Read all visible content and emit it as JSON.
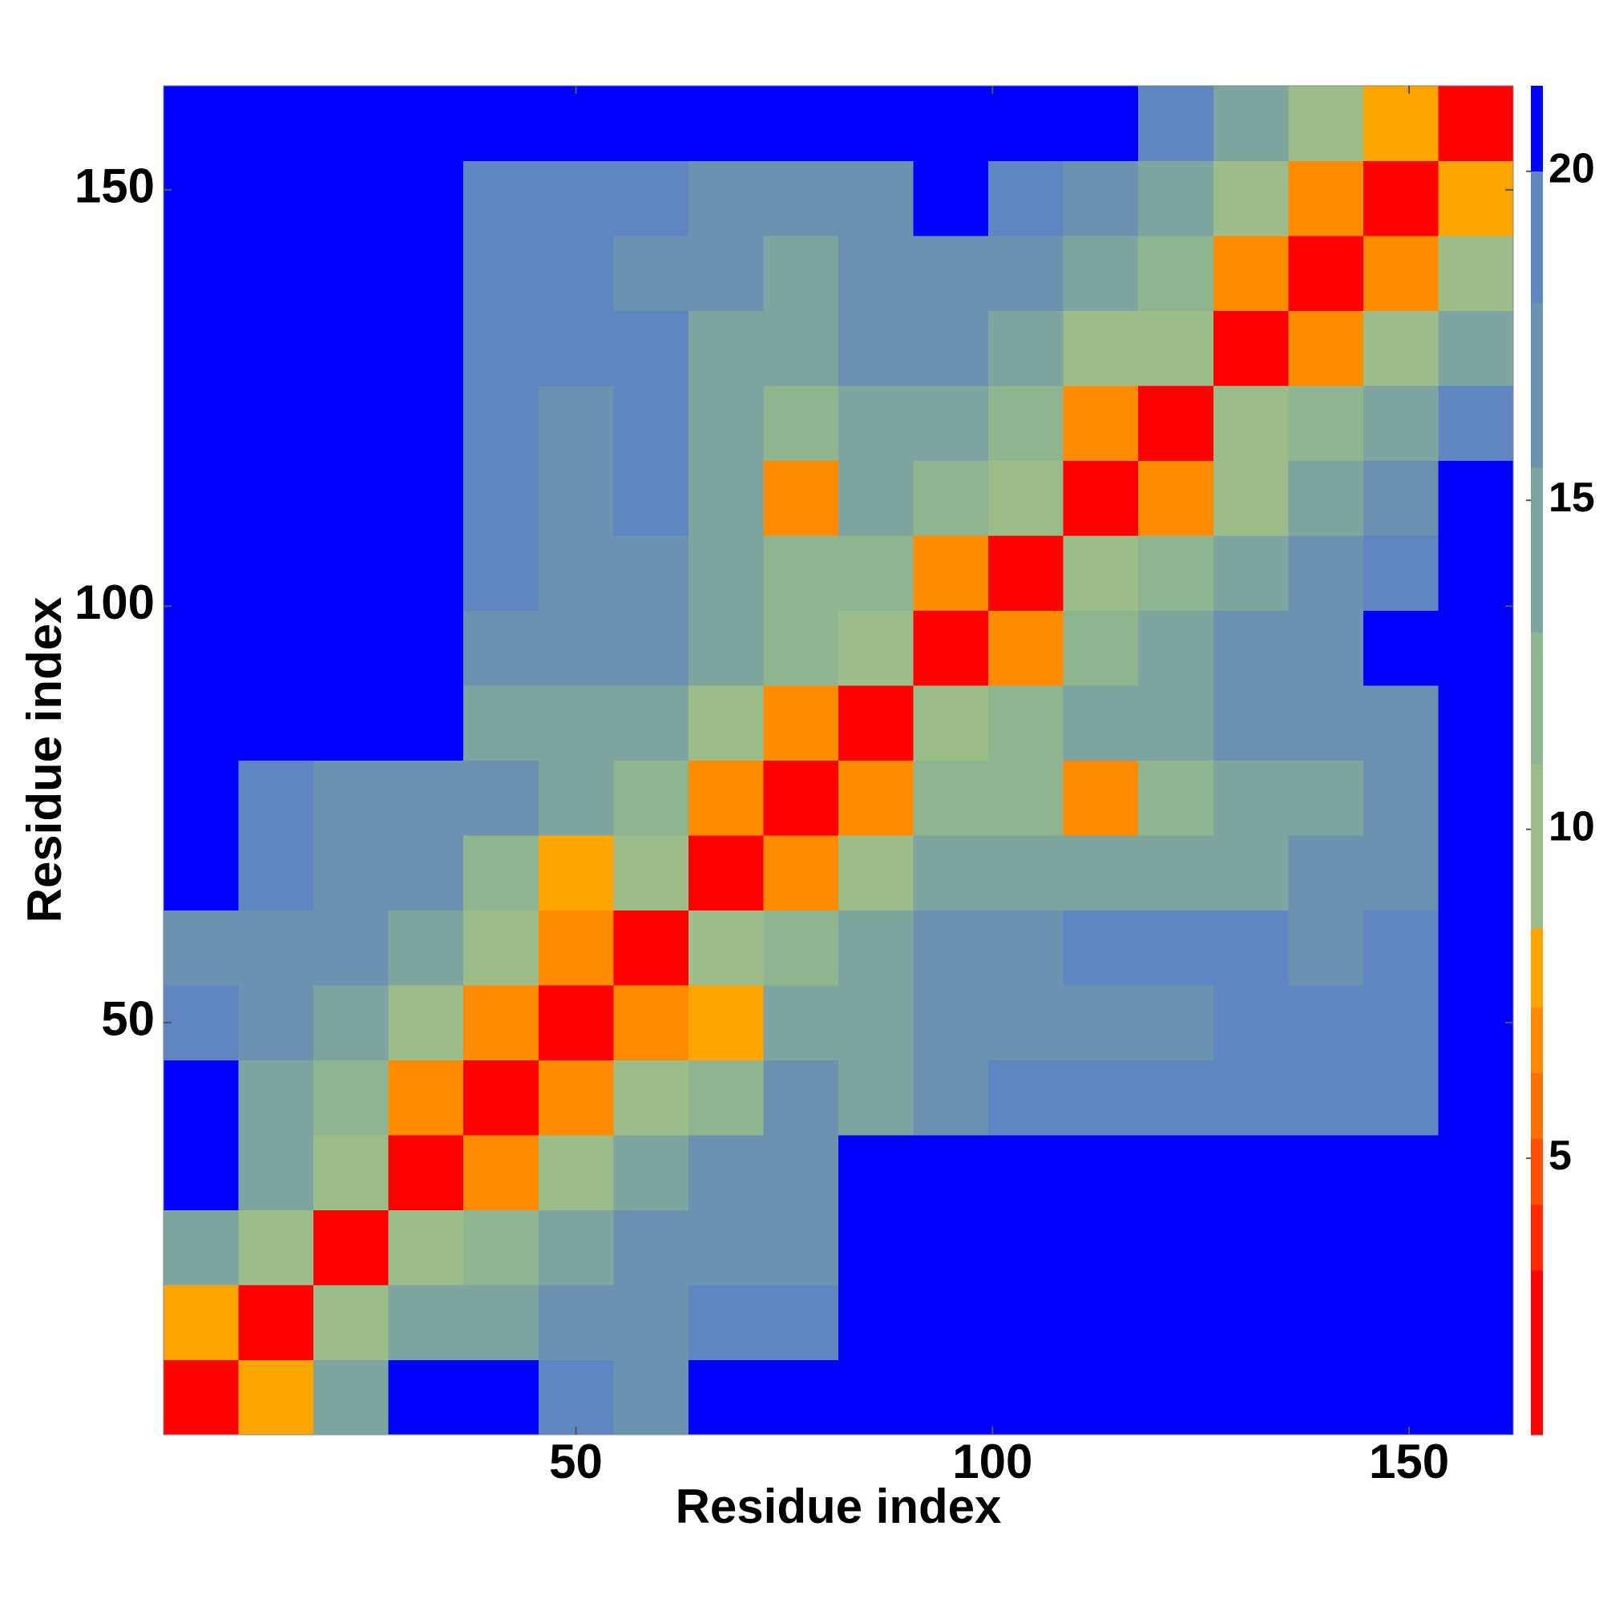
{
  "chart_data": {
    "type": "heatmap",
    "xlabel": "Residue index",
    "ylabel": "Residue index",
    "x": [
      5,
      14,
      23,
      32,
      41,
      50,
      59,
      68,
      77,
      86,
      95,
      104,
      113,
      122,
      131,
      140,
      149,
      158
    ],
    "y": [
      5,
      14,
      23,
      32,
      41,
      50,
      59,
      68,
      77,
      86,
      95,
      104,
      113,
      122,
      131,
      140,
      149,
      158
    ],
    "xlim": [
      0.5,
      162.5
    ],
    "ylim": [
      0.5,
      162.5
    ],
    "xticks": [
      50,
      100,
      150
    ],
    "yticks": [
      50,
      100,
      150
    ],
    "values": [
      [
        3,
        8,
        14,
        21,
        21,
        18,
        17,
        21,
        21,
        21,
        21,
        21,
        21,
        21,
        21,
        21,
        21,
        21
      ],
      [
        8,
        3,
        9,
        14,
        15,
        16,
        17,
        18,
        19,
        21,
        21,
        21,
        21,
        21,
        21,
        21,
        21,
        21
      ],
      [
        14,
        9,
        3,
        9,
        11,
        13,
        17,
        16,
        17,
        21,
        21,
        21,
        21,
        21,
        21,
        21,
        21,
        21
      ],
      [
        21,
        14,
        9,
        3,
        7,
        10,
        13,
        16,
        17,
        21,
        21,
        21,
        21,
        21,
        21,
        21,
        21,
        21
      ],
      [
        21,
        15,
        11,
        7,
        3,
        7,
        10,
        12,
        16,
        15,
        17,
        18,
        18,
        18,
        18,
        18,
        19,
        21
      ],
      [
        18,
        16,
        13,
        10,
        7,
        3,
        7,
        8,
        14,
        14,
        16,
        17,
        17,
        17,
        18,
        18,
        18,
        21
      ],
      [
        17,
        17,
        17,
        13,
        10,
        7,
        3,
        9,
        12,
        15,
        17,
        17,
        18,
        18,
        18,
        17,
        19,
        21
      ],
      [
        21,
        18,
        16,
        16,
        12,
        8,
        9,
        3,
        7,
        9,
        14,
        13,
        14,
        13,
        15,
        16,
        17,
        21
      ],
      [
        21,
        19,
        17,
        17,
        16,
        14,
        12,
        7,
        3,
        7,
        12,
        11,
        7,
        12,
        14,
        15,
        17,
        21
      ],
      [
        21,
        21,
        21,
        21,
        15,
        14,
        15,
        9,
        7,
        3,
        9,
        11,
        13,
        14,
        16,
        16,
        17,
        21
      ],
      [
        21,
        21,
        21,
        21,
        17,
        16,
        17,
        14,
        12,
        9,
        3,
        7,
        12,
        14,
        16,
        17,
        21,
        21
      ],
      [
        21,
        21,
        21,
        21,
        18,
        17,
        17,
        13,
        11,
        11,
        7,
        3,
        9,
        11,
        14,
        16,
        18,
        21
      ],
      [
        21,
        21,
        21,
        21,
        18,
        17,
        18,
        14,
        7,
        13,
        12,
        9,
        3,
        7,
        10,
        13,
        16,
        21
      ],
      [
        21,
        21,
        21,
        21,
        18,
        17,
        18,
        13,
        12,
        14,
        14,
        11,
        7,
        3,
        9,
        11,
        14,
        19
      ],
      [
        21,
        21,
        21,
        21,
        18,
        18,
        18,
        15,
        14,
        16,
        16,
        14,
        10,
        9,
        3,
        7,
        9,
        13
      ],
      [
        21,
        21,
        21,
        21,
        18,
        18,
        17,
        16,
        15,
        16,
        17,
        16,
        13,
        11,
        7,
        3,
        7,
        10
      ],
      [
        21,
        21,
        21,
        21,
        19,
        18,
        19,
        17,
        17,
        17,
        21,
        18,
        16,
        14,
        9,
        7,
        3,
        8
      ],
      [
        21,
        21,
        21,
        21,
        21,
        21,
        21,
        21,
        21,
        21,
        21,
        21,
        21,
        19,
        13,
        10,
        8,
        3
      ]
    ],
    "color_levels": [
      0.8,
      3.3,
      4.3,
      5.3,
      6.3,
      7.3,
      8.5,
      11,
      13,
      15.5,
      18,
      20,
      21.3
    ],
    "colors": [
      "#ff0000",
      "#ff2a00",
      "#ff4f00",
      "#ff7000",
      "#ff8c00",
      "#ffa500",
      "#9cbc8a",
      "#8fb490",
      "#7ea59f",
      "#6b93b0",
      "#5f86c0",
      "#0000ff"
    ],
    "clim": [
      0.8,
      21.3
    ],
    "colorbar_ticks": [
      5,
      10,
      15,
      20
    ]
  }
}
